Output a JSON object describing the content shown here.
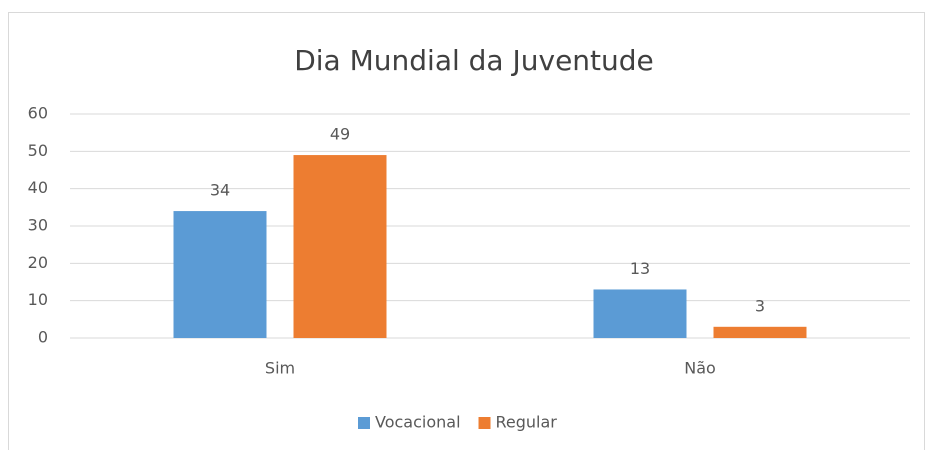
{
  "chart_data": {
    "type": "bar",
    "title": "Dia Mundial da Juventude",
    "categories": [
      "Sim",
      "Não"
    ],
    "series": [
      {
        "name": "Vocacional",
        "color": "#5b9bd5",
        "values": [
          34,
          13
        ]
      },
      {
        "name": "Regular",
        "color": "#ed7d31",
        "values": [
          49,
          3
        ]
      }
    ],
    "ylim": [
      0,
      60
    ],
    "yticks": [
      0,
      10,
      20,
      30,
      40,
      50,
      60
    ],
    "grid": true,
    "legend": "bottom"
  }
}
